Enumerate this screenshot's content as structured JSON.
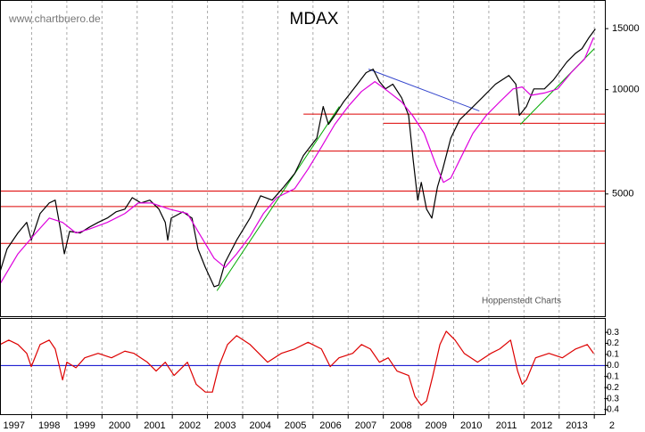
{
  "chart_data": [
    {
      "type": "line",
      "title": "MDAX",
      "source": "www.chartbuero.de",
      "credit": "Hoppenstedt Charts",
      "log": true,
      "xlim": [
        1997.1,
        2014.3
      ],
      "ylim": [
        2220,
        18140
      ],
      "yticks": [
        5000,
        10000,
        15000
      ],
      "series": [
        {
          "color": "#000000",
          "x": [
            1997.1,
            1997.3,
            1997.61,
            1997.86,
            1997.99,
            1998.24,
            1998.5,
            1998.67,
            1998.83,
            1998.93,
            1999.08,
            1999.38,
            1999.64,
            1999.89,
            2000.15,
            2000.4,
            2000.65,
            2000.86,
            2001.11,
            2001.36,
            2001.62,
            2001.8,
            2001.87,
            2001.97,
            2002.3,
            2002.56,
            2002.73,
            2002.94,
            2003.19,
            2003.32,
            2003.5,
            2003.83,
            2004.21,
            2004.51,
            2004.84,
            2005.17,
            2005.48,
            2005.73,
            2006.11,
            2006.29,
            2006.44,
            2006.62,
            2006.87,
            2007.2,
            2007.51,
            2007.71,
            2007.89,
            2008.06,
            2008.27,
            2008.52,
            2008.72,
            2008.85,
            2008.98,
            2009.08,
            2009.23,
            2009.38,
            2009.54,
            2009.69,
            2009.92,
            2010.17,
            2010.43,
            2010.81,
            2011.19,
            2011.57,
            2011.77,
            2011.87,
            2012.07,
            2012.28,
            2012.58,
            2012.84,
            2013.22,
            2013.47,
            2013.65,
            2013.85,
            2014.03
          ],
          "values": [
            2980,
            3470,
            3860,
            4140,
            3680,
            4390,
            4710,
            4800,
            3900,
            3360,
            3900,
            3860,
            4010,
            4140,
            4260,
            4440,
            4520,
            4880,
            4710,
            4800,
            4520,
            4140,
            3680,
            4260,
            4440,
            4260,
            3470,
            3070,
            2700,
            2730,
            3170,
            3680,
            4260,
            4940,
            4800,
            5240,
            5730,
            6460,
            7250,
            8940,
            7940,
            8430,
            9220,
            10180,
            11190,
            11460,
            10550,
            10050,
            10370,
            9480,
            8430,
            6260,
            4800,
            5400,
            4520,
            4260,
            5240,
            5900,
            7250,
            8180,
            8680,
            9480,
            10370,
            10990,
            10370,
            8430,
            8940,
            10050,
            10050,
            10670,
            12020,
            12740,
            13130,
            14140,
            14970
          ]
        },
        {
          "color": "#dd00dd",
          "x": [
            1997.1,
            1997.61,
            1998.12,
            1998.5,
            1998.88,
            1999.26,
            1999.64,
            2000.15,
            2000.65,
            2001.03,
            2001.41,
            2001.92,
            2002.43,
            2002.81,
            2003.19,
            2003.5,
            2003.83,
            2004.21,
            2004.59,
            2004.97,
            2005.48,
            2005.86,
            2006.24,
            2006.62,
            2007.0,
            2007.38,
            2007.76,
            2008.14,
            2008.52,
            2008.83,
            2009.16,
            2009.49,
            2009.71,
            2009.92,
            2010.17,
            2010.55,
            2010.93,
            2011.31,
            2011.69,
            2011.95,
            2012.2,
            2012.58,
            2012.96,
            2013.34,
            2013.72,
            2013.98
          ],
          "values": [
            2750,
            3360,
            3860,
            4260,
            4140,
            3860,
            3960,
            4140,
            4390,
            4710,
            4710,
            4520,
            4390,
            3780,
            3260,
            3070,
            3360,
            3780,
            4390,
            4880,
            5180,
            5900,
            6830,
            7940,
            8940,
            9880,
            10550,
            9880,
            9220,
            8430,
            7490,
            6090,
            5400,
            5560,
            6260,
            7490,
            8430,
            9220,
            10050,
            10180,
            9630,
            9780,
            10050,
            11190,
            12250,
            14140
          ]
        }
      ],
      "trendlines": [
        {
          "color": "#00aa00",
          "x": [
            2003.27,
            2006.75
          ],
          "values": [
            2630,
            8940
          ]
        },
        {
          "color": "#00aa00",
          "x": [
            2011.9,
            2014.0
          ],
          "values": [
            7940,
            13130
          ]
        },
        {
          "color": "#3344cc",
          "x": [
            2007.58,
            2010.73
          ],
          "values": [
            11460,
            8680
          ]
        }
      ],
      "level_color": "#dd0000",
      "levels": [
        {
          "value": 5100,
          "start": 1997.1
        },
        {
          "value": 4600,
          "start": 1997.1
        },
        {
          "value": 3600,
          "start": 1997.1
        },
        {
          "value": 8500,
          "start": 2005.73
        },
        {
          "value": 8000,
          "start": 2008.0
        },
        {
          "value": 6650,
          "start": 2005.86
        }
      ]
    },
    {
      "type": "line",
      "xlim": [
        1997.1,
        2014.3
      ],
      "ylim": [
        -0.44,
        0.43
      ],
      "yticks": [
        0.3,
        0.2,
        0.1,
        {
          "value": 0,
          "label": "0.0"
        },
        -0.1,
        -0.2,
        -0.3,
        -0.4
      ],
      "refline": {
        "value": 0,
        "color": "#0000cc"
      },
      "xgrid": true,
      "xticks": [
        1997,
        1998,
        1999,
        2000,
        2001,
        2002,
        2003,
        2004,
        2005,
        2006,
        2007,
        2008,
        2009,
        2010,
        2011,
        2012,
        2013,
        {
          "value": 2014,
          "label": "2"
        }
      ],
      "series": [
        {
          "color": "#dd0000",
          "x": [
            1997.1,
            1997.35,
            1997.61,
            1997.86,
            1997.99,
            1998.24,
            1998.5,
            1998.67,
            1998.88,
            1999.0,
            1999.26,
            1999.51,
            1999.89,
            2000.27,
            2000.65,
            2000.91,
            2001.29,
            2001.54,
            2001.8,
            2002.05,
            2002.43,
            2002.68,
            2002.94,
            2003.14,
            2003.32,
            2003.57,
            2003.83,
            2004.21,
            2004.46,
            2004.71,
            2005.1,
            2005.48,
            2005.86,
            2006.24,
            2006.49,
            2006.74,
            2007.13,
            2007.38,
            2007.63,
            2007.89,
            2008.14,
            2008.39,
            2008.72,
            2008.9,
            2009.08,
            2009.23,
            2009.41,
            2009.61,
            2009.79,
            2010.04,
            2010.3,
            2010.68,
            2011.06,
            2011.31,
            2011.62,
            2011.82,
            2011.95,
            2012.07,
            2012.33,
            2012.71,
            2013.09,
            2013.47,
            2013.8,
            2013.98
          ],
          "values": [
            0.19,
            0.23,
            0.19,
            0.11,
            -0.01,
            0.19,
            0.23,
            0.15,
            -0.13,
            0.03,
            -0.02,
            0.07,
            0.11,
            0.07,
            0.13,
            0.11,
            0.03,
            -0.05,
            0.03,
            -0.09,
            0.03,
            -0.17,
            -0.24,
            -0.24,
            -0.01,
            0.19,
            0.27,
            0.19,
            0.11,
            0.03,
            0.11,
            0.15,
            0.21,
            0.15,
            -0.01,
            0.07,
            0.11,
            0.19,
            0.15,
            0.03,
            0.07,
            -0.05,
            -0.09,
            -0.28,
            -0.36,
            -0.32,
            -0.09,
            0.19,
            0.31,
            0.23,
            0.11,
            0.03,
            0.11,
            0.15,
            0.23,
            -0.05,
            -0.17,
            -0.13,
            0.07,
            0.11,
            0.07,
            0.15,
            0.19,
            0.11
          ]
        }
      ]
    }
  ]
}
